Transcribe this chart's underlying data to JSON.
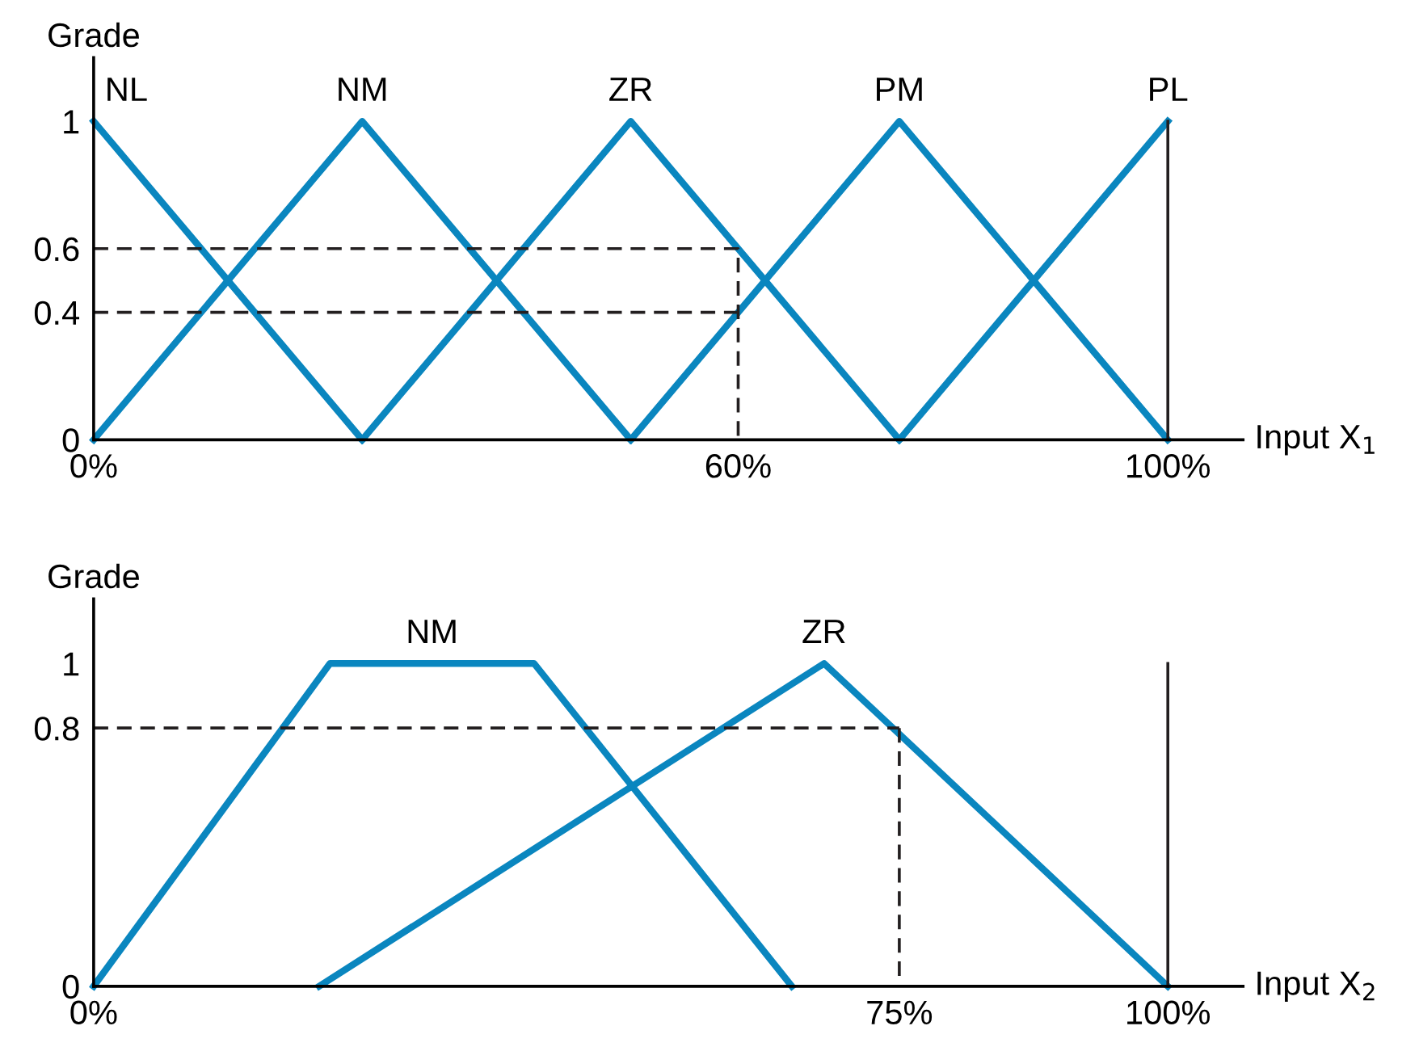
{
  "chart_data": [
    {
      "type": "line",
      "xlabel": "Input X$_{1}$",
      "ylabel": "Grade",
      "xlim": [
        0,
        107
      ],
      "ylim": [
        0,
        1.2
      ],
      "xticks": [
        {
          "value": 0,
          "label": "0%"
        },
        {
          "value": 60,
          "label": "60%"
        },
        {
          "value": 100,
          "label": "100%"
        }
      ],
      "yticks": [
        0,
        0.4,
        0.6,
        1
      ],
      "grid": false,
      "legend": false,
      "marker": "none",
      "line_style": "solid",
      "series": [
        {
          "name": "NL",
          "color": "#0a86bf",
          "x": [
            0,
            25
          ],
          "values": [
            1,
            0
          ]
        },
        {
          "name": "NM",
          "color": "#0a86bf",
          "x": [
            0,
            25,
            50
          ],
          "values": [
            0,
            1,
            0
          ]
        },
        {
          "name": "ZR",
          "color": "#0a86bf",
          "x": [
            25,
            50,
            75
          ],
          "values": [
            0,
            1,
            0
          ]
        },
        {
          "name": "PM",
          "color": "#0a86bf",
          "x": [
            50,
            75,
            100
          ],
          "values": [
            0,
            1,
            0
          ]
        },
        {
          "name": "PL",
          "color": "#0a86bf",
          "x": [
            75,
            100
          ],
          "values": [
            0,
            1
          ]
        },
        {
          "color": "#231f20",
          "x": [
            100,
            100
          ],
          "values": [
            0,
            1
          ]
        },
        {
          "color": "#231f20",
          "line_style": "dashed",
          "x": [
            0,
            60,
            60
          ],
          "values": [
            0.6,
            0.6,
            0
          ]
        },
        {
          "color": "#231f20",
          "line_style": "dashed",
          "x": [
            0,
            60
          ],
          "values": [
            0.4,
            0.4
          ]
        }
      ]
    },
    {
      "type": "line",
      "xlabel": "Input X$_{2}$",
      "ylabel": "Grade",
      "xlim": [
        0,
        107
      ],
      "ylim": [
        0,
        1.2
      ],
      "xticks": [
        {
          "value": 0,
          "label": "0%"
        },
        {
          "value": 75,
          "label": "75%"
        },
        {
          "value": 100,
          "label": "100%"
        }
      ],
      "yticks": [
        0,
        0.8,
        1
      ],
      "grid": false,
      "legend": false,
      "marker": "none",
      "line_style": "solid",
      "series": [
        {
          "name": "NM",
          "color": "#0a86bf",
          "x": [
            0,
            22,
            41,
            65
          ],
          "values": [
            0,
            1,
            1,
            0
          ]
        },
        {
          "name": "ZR",
          "color": "#0a86bf",
          "x": [
            21,
            68,
            100
          ],
          "values": [
            0,
            1,
            0
          ]
        },
        {
          "color": "#231f20",
          "line_style": "dashed",
          "x": [
            0,
            75
          ],
          "values": [
            0.8,
            0.8
          ]
        },
        {
          "color": "#231f20",
          "line_style": "dashed",
          "x": [
            75,
            75
          ],
          "values": [
            0.8,
            0
          ]
        },
        {
          "color": "#231f20",
          "line_style": "solid",
          "x": [
            100,
            100
          ],
          "values": [
            0,
            1
          ]
        }
      ]
    }
  ]
}
